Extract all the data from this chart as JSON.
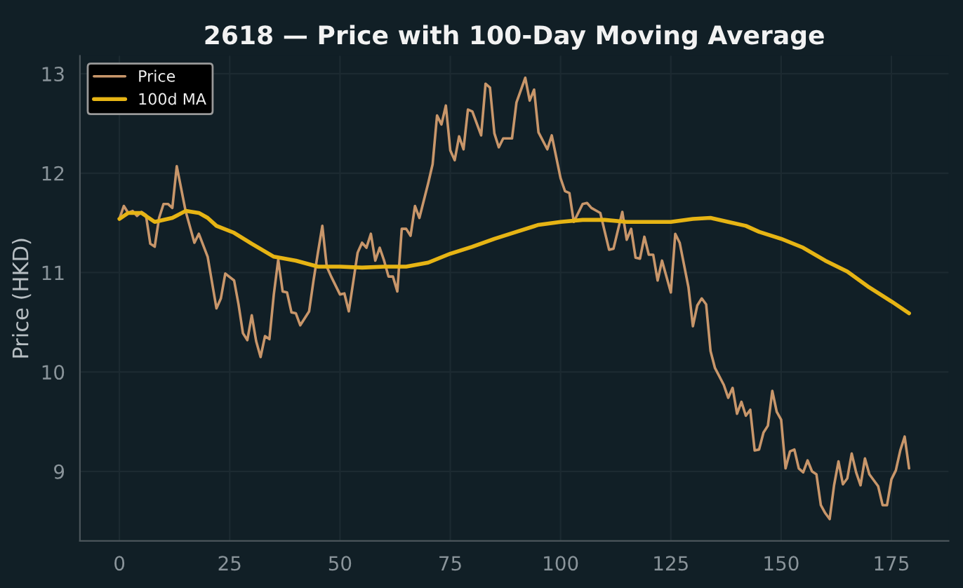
{
  "chart_data": {
    "type": "line",
    "title": "2618 — Price with 100-Day Moving Average",
    "ylabel": "Price (HKD)",
    "xlim": [
      -8.95,
      187.95
    ],
    "ylim": [
      8.3,
      13.18
    ],
    "xticks": [
      0,
      25,
      50,
      75,
      100,
      125,
      150,
      175
    ],
    "yticks": [
      9,
      10,
      11,
      12,
      13
    ],
    "grid": true,
    "legend": "top left",
    "series": [
      {
        "name": "Price",
        "color": "#c8966a",
        "x": [
          0,
          1,
          2,
          3,
          4,
          5,
          6,
          7,
          8,
          9,
          10,
          11,
          12,
          13,
          15,
          17,
          18,
          20,
          22,
          23,
          24,
          26,
          27,
          28,
          29,
          30,
          31,
          32,
          33,
          34,
          35,
          36,
          37,
          38,
          39,
          40,
          41,
          43,
          44,
          45,
          46,
          47,
          48,
          50,
          51,
          52,
          54,
          55,
          56,
          57,
          58,
          59,
          60,
          61,
          62,
          63,
          64,
          65,
          66,
          67,
          68,
          70,
          71,
          72,
          73,
          74,
          75,
          76,
          77,
          78,
          79,
          80,
          82,
          83,
          84,
          85,
          86,
          87,
          89,
          90,
          92,
          93,
          94,
          95,
          97,
          98,
          100,
          101,
          102,
          103,
          105,
          106,
          107,
          109,
          111,
          112,
          114,
          115,
          116,
          117,
          118,
          119,
          120,
          121,
          122,
          123,
          125,
          126,
          127,
          129,
          130,
          131,
          132,
          133,
          134,
          135,
          137,
          138,
          139,
          140,
          141,
          142,
          143,
          144,
          145,
          146,
          147,
          148,
          149,
          150,
          151,
          152,
          153,
          154,
          155,
          156,
          157,
          158,
          159,
          160,
          161,
          162,
          163,
          164,
          165,
          166,
          167,
          168,
          169,
          170,
          172,
          173,
          174,
          175,
          176,
          177,
          178,
          179
        ],
        "values": [
          11.54,
          11.67,
          11.6,
          11.62,
          11.57,
          11.61,
          11.58,
          11.29,
          11.26,
          11.55,
          11.69,
          11.69,
          11.65,
          12.07,
          11.62,
          11.3,
          11.39,
          11.16,
          10.64,
          10.74,
          10.99,
          10.92,
          10.68,
          10.39,
          10.32,
          10.57,
          10.31,
          10.15,
          10.36,
          10.33,
          10.78,
          11.13,
          10.81,
          10.8,
          10.6,
          10.59,
          10.47,
          10.61,
          10.92,
          11.2,
          11.47,
          11.06,
          10.96,
          10.78,
          10.79,
          10.61,
          11.2,
          11.3,
          11.25,
          11.39,
          11.12,
          11.25,
          11.12,
          10.96,
          10.96,
          10.81,
          11.44,
          11.44,
          11.37,
          11.67,
          11.55,
          11.9,
          12.09,
          12.58,
          12.49,
          12.68,
          12.23,
          12.13,
          12.37,
          12.24,
          12.64,
          12.62,
          12.38,
          12.9,
          12.86,
          12.4,
          12.26,
          12.35,
          12.35,
          12.71,
          12.96,
          12.73,
          12.84,
          12.41,
          12.24,
          12.38,
          11.95,
          11.82,
          11.8,
          11.51,
          11.69,
          11.7,
          11.65,
          11.6,
          11.23,
          11.24,
          11.61,
          11.33,
          11.44,
          11.15,
          11.14,
          11.36,
          11.18,
          11.18,
          10.92,
          11.12,
          10.8,
          11.39,
          11.3,
          10.85,
          10.46,
          10.67,
          10.74,
          10.68,
          10.21,
          10.04,
          9.87,
          9.74,
          9.84,
          9.58,
          9.7,
          9.56,
          9.62,
          9.21,
          9.22,
          9.39,
          9.46,
          9.81,
          9.6,
          9.52,
          9.03,
          9.2,
          9.22,
          9.03,
          8.99,
          9.11,
          9.0,
          8.97,
          8.66,
          8.58,
          8.52,
          8.86,
          9.1,
          8.87,
          8.93,
          9.18,
          8.99,
          8.86,
          9.13,
          8.97,
          8.85,
          8.66,
          8.66,
          8.92,
          9.01,
          9.21,
          9.35,
          9.03
        ]
      },
      {
        "name": "100d MA",
        "color": "#e6b414",
        "x": [
          0,
          2,
          5,
          8,
          12,
          15,
          18,
          20,
          22,
          26,
          30,
          35,
          40,
          45,
          50,
          55,
          60,
          65,
          70,
          75,
          80,
          85,
          90,
          95,
          100,
          105,
          110,
          115,
          120,
          125,
          130,
          134,
          138,
          142,
          145,
          150,
          155,
          160,
          165,
          170,
          175,
          179
        ],
        "values": [
          11.54,
          11.6,
          11.6,
          11.51,
          11.55,
          11.62,
          11.6,
          11.55,
          11.47,
          11.4,
          11.29,
          11.16,
          11.12,
          11.06,
          11.06,
          11.05,
          11.06,
          11.06,
          11.1,
          11.19,
          11.26,
          11.34,
          11.41,
          11.48,
          11.51,
          11.53,
          11.53,
          11.51,
          11.51,
          11.51,
          11.54,
          11.55,
          11.51,
          11.47,
          11.41,
          11.34,
          11.25,
          11.12,
          11.01,
          10.85,
          10.71,
          10.59
        ]
      }
    ]
  }
}
